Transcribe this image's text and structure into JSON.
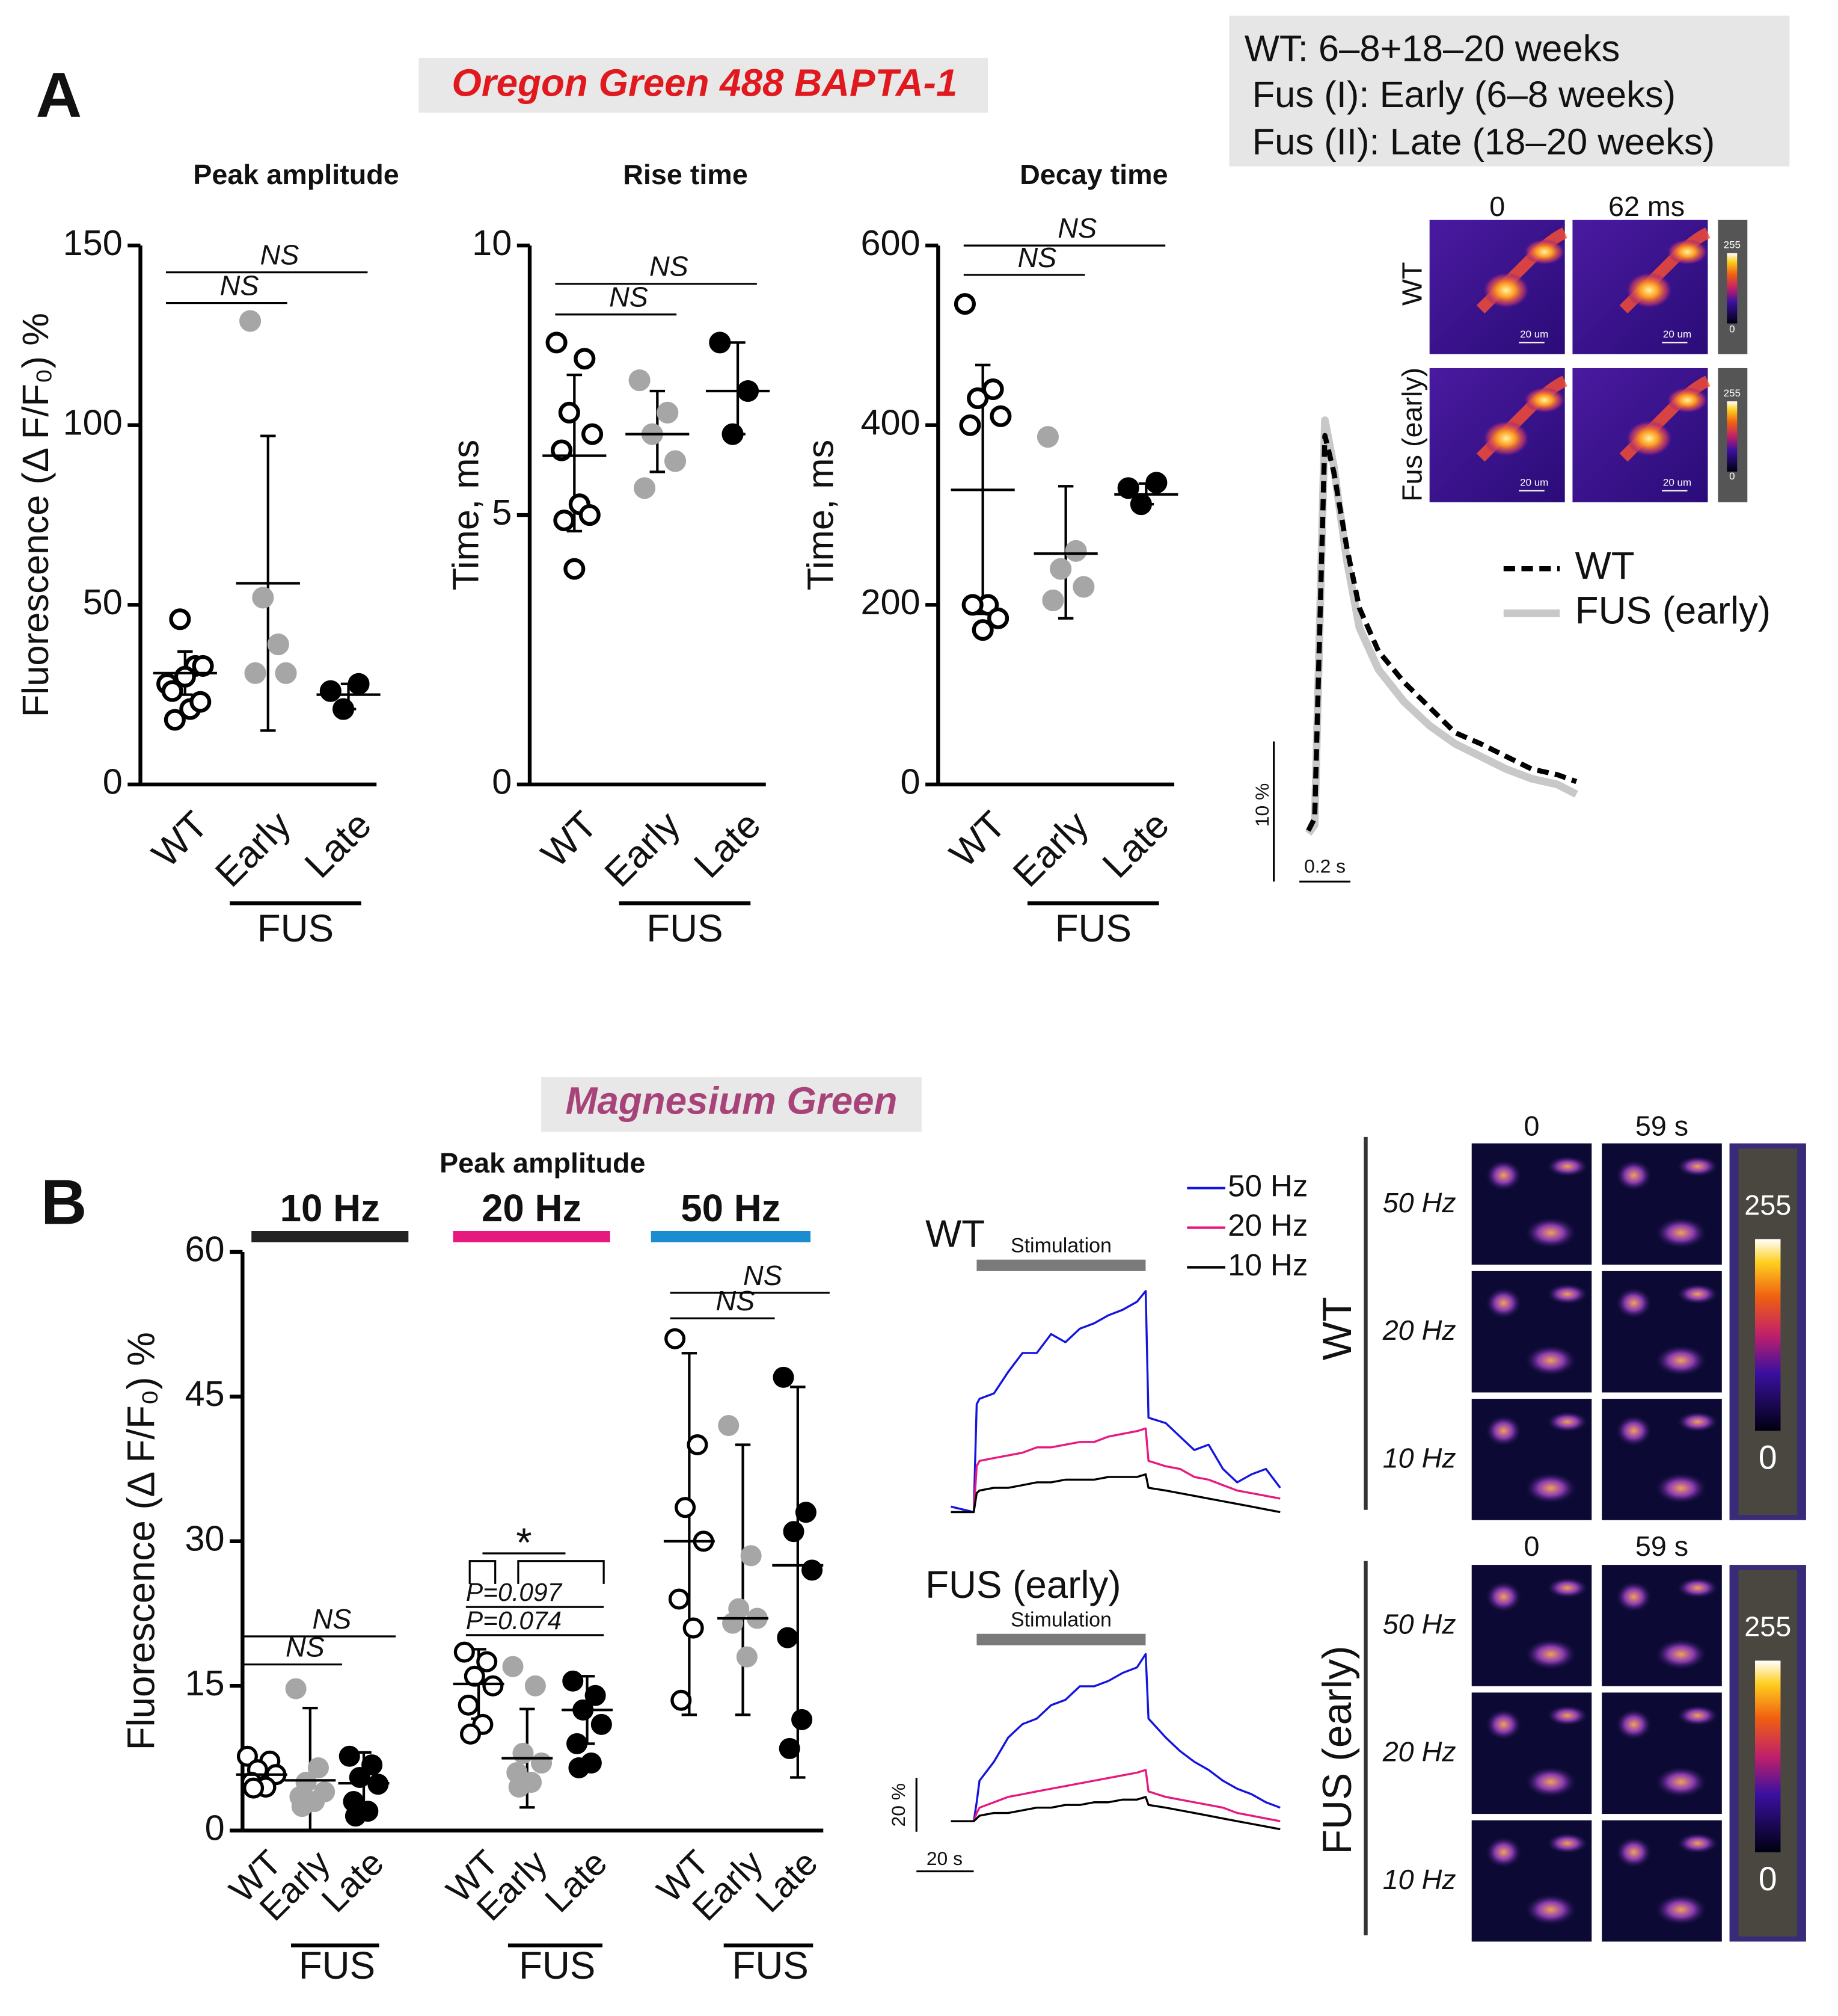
{
  "figure": {
    "panel_a": "A",
    "panel_b": "B",
    "dye_a": "Oregon Green 488 BAPTA-1",
    "dye_b": "Magnesium Green",
    "info": [
      "WT: 6–8+18–20 weeks",
      "Fus (I): Early (6–8 weeks)",
      "Fus (II): Late (18–20 weeks)"
    ],
    "images_a": {
      "columns": [
        "0",
        "62 ms"
      ],
      "rows": [
        "WT",
        "Fus (early)"
      ],
      "scale": "20 um",
      "colorbar": [
        "255",
        "0"
      ]
    },
    "images_b": {
      "columns": [
        "0",
        "59 s"
      ],
      "groups": [
        "WT",
        "FUS (early)"
      ],
      "rows": [
        "50 Hz",
        "20 Hz",
        "10 Hz"
      ],
      "colorbar": [
        "255",
        "0"
      ]
    }
  },
  "chart_data": [
    {
      "type": "dot",
      "title": "Peak amplitude",
      "ylabel": "Fluorescence (Δ F/F₀) %",
      "categories": [
        "WT",
        "Early",
        "Late"
      ],
      "group_label": "FUS",
      "marker_fill": [
        "#ffffff",
        "#a6a6a6",
        "#000000"
      ],
      "marker_stroke": [
        "#000000",
        "#a6a6a6",
        "#000000"
      ],
      "values": [
        [
          28,
          33,
          46,
          33,
          26,
          21,
          18,
          23,
          30
        ],
        [
          129,
          39,
          52,
          31,
          31
        ],
        [
          26,
          28,
          21
        ]
      ],
      "means": [
        31,
        56,
        25
      ],
      "sd": [
        [
          25,
          37
        ],
        [
          15,
          97
        ],
        [
          21,
          28
        ]
      ],
      "annotations": [
        {
          "text": "NS",
          "from": 0,
          "to": 1
        },
        {
          "text": "NS",
          "from": 0,
          "to": 2
        }
      ],
      "ylim": [
        0,
        150
      ],
      "yticks": [
        0,
        50,
        100,
        150
      ]
    },
    {
      "type": "dot",
      "title": "Rise time",
      "ylabel": "Time, ms",
      "categories": [
        "WT",
        "Early",
        "Late"
      ],
      "group_label": "FUS",
      "marker_fill": [
        "#ffffff",
        "#a6a6a6",
        "#000000"
      ],
      "marker_stroke": [
        "#000000",
        "#a6a6a6",
        "#000000"
      ],
      "values": [
        [
          8.2,
          7.9,
          6.9,
          6.5,
          6.2,
          5.2,
          4.9,
          5.0,
          4.0
        ],
        [
          7.5,
          6.9,
          6.5,
          6.0,
          5.5
        ],
        [
          8.2,
          7.3,
          6.5
        ]
      ],
      "means": [
        6.1,
        6.5,
        7.3
      ],
      "sd": [
        [
          4.7,
          7.6
        ],
        [
          5.8,
          7.3
        ],
        [
          6.5,
          8.2
        ]
      ],
      "annotations": [
        {
          "text": "NS",
          "from": 0,
          "to": 1
        },
        {
          "text": "NS",
          "from": 0,
          "to": 2
        }
      ],
      "ylim": [
        0,
        10
      ],
      "yticks": [
        0,
        5,
        10
      ]
    },
    {
      "type": "dot",
      "title": "Decay time",
      "ylabel": "Time, ms",
      "categories": [
        "WT",
        "Early",
        "Late"
      ],
      "group_label": "FUS",
      "marker_fill": [
        "#ffffff",
        "#a6a6a6",
        "#000000"
      ],
      "marker_stroke": [
        "#000000",
        "#a6a6a6",
        "#000000"
      ],
      "values": [
        [
          535,
          440,
          430,
          410,
          400,
          200,
          200,
          185,
          172
        ],
        [
          387,
          260,
          240,
          220,
          205
        ],
        [
          330,
          336,
          312
        ]
      ],
      "means": [
        328,
        257,
        323
      ],
      "sd": [
        [
          190,
          467
        ],
        [
          185,
          332
        ],
        [
          312,
          335
        ]
      ],
      "annotations": [
        {
          "text": "NS",
          "from": 0,
          "to": 1
        },
        {
          "text": "NS",
          "from": 0,
          "to": 2
        }
      ],
      "ylim": [
        0,
        600
      ],
      "yticks": [
        0,
        200,
        400,
        600
      ]
    },
    {
      "type": "line",
      "xlim": [
        0,
        1.1
      ],
      "ylim": [
        0,
        31
      ],
      "x": [
        0.025,
        0.05,
        0.09,
        0.125,
        0.175,
        0.225,
        0.3,
        0.4,
        0.5,
        0.6,
        0.7,
        0.8,
        0.9,
        1.0,
        1.075
      ],
      "series": [
        {
          "name": "FUS (early)",
          "color": "#c8c8c8",
          "style": "solid",
          "values": [
            0.7,
            1.3,
            30.2,
            26.9,
            20.3,
            15.4,
            12.4,
            10.1,
            8.4,
            7.1,
            6.2,
            5.3,
            4.6,
            4.2,
            3.5
          ]
        },
        {
          "name": "WT",
          "color": "#000000",
          "style": "dashed",
          "values": [
            0.9,
            1.8,
            29.1,
            26.5,
            21.2,
            16.8,
            13.7,
            11.5,
            9.7,
            7.9,
            7.1,
            6.2,
            5.3,
            4.9,
            4.4
          ]
        }
      ],
      "scale_bars": {
        "y": 10,
        "y_label": "10 %",
        "x": 0.2,
        "x_label": "0.2 s"
      }
    },
    {
      "type": "dot",
      "title": "Peak amplitude",
      "ylabel": "Fluorescence (Δ F/F₀) %",
      "frequencies": [
        {
          "name": "10 Hz",
          "color": "#222222"
        },
        {
          "name": "20 Hz",
          "color": "#e6197f"
        },
        {
          "name": "50 Hz",
          "color": "#1a8ccf"
        }
      ],
      "categories": [
        "WT",
        "Early",
        "Late"
      ],
      "group_label": "FUS",
      "marker_fill": [
        "#ffffff",
        "#a6a6a6",
        "#000000"
      ],
      "marker_stroke": [
        "#000000",
        "#a6a6a6",
        "#000000"
      ],
      "values": [
        [
          [
            7.7,
            7.2,
            6.3,
            5.8,
            5.0,
            4.5,
            4.4
          ],
          [
            14.7,
            6.5,
            5.0,
            4.0,
            3.5,
            3.0,
            2.5
          ],
          [
            7.7,
            6.8,
            5.5,
            4.8,
            3.0,
            2.0,
            1.5
          ]
        ],
        [
          [
            18.5,
            17.5,
            16,
            15,
            13,
            11,
            10
          ],
          [
            17,
            15,
            8,
            7,
            6,
            5,
            4.5
          ],
          [
            15.5,
            14,
            12.5,
            11,
            9,
            7,
            6.5
          ]
        ],
        [
          [
            51,
            40,
            33.5,
            30,
            24,
            21,
            13.5
          ],
          [
            42,
            28.5,
            23,
            22,
            21.5,
            18
          ],
          [
            47,
            33,
            31,
            27,
            20,
            11.5,
            8.5
          ]
        ]
      ],
      "means": [
        [
          5.8,
          5.2,
          4.9
        ],
        [
          15.2,
          7.5,
          12.5
        ],
        [
          30,
          22,
          27.5
        ]
      ],
      "sd": [
        [
          [
            4.6,
            7.2
          ],
          [
            0,
            12.7
          ],
          [
            1.9,
            8.1
          ]
        ],
        [
          [
            11.6,
            18.8
          ],
          [
            2.4,
            12.6
          ],
          [
            9,
            16
          ]
        ],
        [
          [
            12,
            49.5
          ],
          [
            12,
            40
          ],
          [
            5.5,
            46
          ]
        ]
      ],
      "annotations": [
        {
          "freq": 0,
          "text": "NS",
          "from": 0,
          "to": 1
        },
        {
          "freq": 0,
          "text": "NS",
          "from": 0,
          "to": 2
        },
        {
          "freq": 1,
          "text": "*",
          "from": 0,
          "to": 2
        },
        {
          "freq": 1,
          "text": "P=0.097",
          "from": 0,
          "to": 2
        },
        {
          "freq": 1,
          "text": "P=0.074",
          "from": 0,
          "to": 2
        },
        {
          "freq": 2,
          "text": "NS",
          "from": 0,
          "to": 1
        },
        {
          "freq": 2,
          "text": "NS",
          "from": 0,
          "to": 2
        }
      ],
      "ylim": [
        0,
        60
      ],
      "yticks": [
        0,
        15,
        30,
        45,
        60
      ]
    },
    {
      "type": "line",
      "title": "WT",
      "xlim": [
        0,
        115
      ],
      "ylim": [
        0,
        90
      ],
      "stimulation": {
        "label": "Stimulation",
        "start": 9,
        "end": 68
      },
      "x": [
        0,
        8,
        9,
        10,
        15,
        20,
        25,
        30,
        35,
        40,
        45,
        50,
        55,
        60,
        65,
        68,
        69,
        75,
        80,
        85,
        90,
        95,
        100,
        105,
        110,
        115
      ],
      "series": [
        {
          "name": "50 Hz",
          "color": "#1414e0",
          "style": "solid",
          "values": [
            5,
            3,
            43,
            45,
            47,
            55,
            62,
            62,
            69,
            66,
            71,
            73,
            76,
            78,
            81,
            85,
            38,
            36,
            31,
            26,
            28,
            19,
            14,
            17,
            19,
            12
          ]
        },
        {
          "name": "20 Hz",
          "color": "#e6197f",
          "style": "solid",
          "values": [
            3,
            3,
            20,
            22,
            23,
            24,
            25,
            27,
            27,
            28,
            29,
            29,
            31,
            32,
            33,
            34,
            22,
            20,
            19,
            16,
            15,
            13,
            11,
            10,
            9,
            8
          ]
        },
        {
          "name": "10 Hz",
          "color": "#000000",
          "style": "solid",
          "values": [
            3,
            3,
            10,
            11,
            12,
            12,
            13,
            14,
            14,
            15,
            15,
            15,
            16,
            16,
            16,
            17,
            12,
            11,
            10,
            9,
            8,
            7,
            6,
            5,
            4,
            3
          ]
        }
      ]
    },
    {
      "type": "line",
      "title": "FUS (early)",
      "xlim": [
        0,
        115
      ],
      "ylim": [
        0,
        90
      ],
      "stimulation": {
        "label": "Stimulation",
        "start": 9,
        "end": 68
      },
      "x": [
        0,
        8,
        9,
        10,
        15,
        20,
        25,
        30,
        35,
        40,
        45,
        50,
        55,
        60,
        65,
        68,
        69,
        75,
        80,
        85,
        90,
        95,
        100,
        105,
        110,
        115
      ],
      "series": [
        {
          "color": "#1414e0",
          "style": "solid",
          "values": [
            3,
            3,
            10,
            18,
            25,
            34,
            39,
            41,
            46,
            48,
            53,
            53,
            55,
            58,
            60,
            65,
            41,
            34,
            29,
            25,
            22,
            18,
            15,
            13,
            10,
            8
          ]
        },
        {
          "color": "#e6197f",
          "style": "solid",
          "values": [
            3,
            3,
            6,
            8,
            10,
            12,
            13,
            14,
            15,
            16,
            17,
            18,
            19,
            20,
            21,
            22,
            14,
            12,
            11,
            10,
            9,
            8,
            6,
            5,
            4,
            3
          ]
        },
        {
          "color": "#000000",
          "style": "solid",
          "values": [
            3,
            3,
            4,
            5,
            6,
            6,
            7,
            8,
            8,
            9,
            9,
            10,
            10,
            11,
            11,
            12,
            9,
            8,
            7,
            6,
            5,
            4,
            3,
            2,
            1,
            0
          ]
        }
      ],
      "scale_bars": {
        "y": 20,
        "y_label": "20 %",
        "x": 20,
        "x_label": "20 s"
      }
    }
  ]
}
